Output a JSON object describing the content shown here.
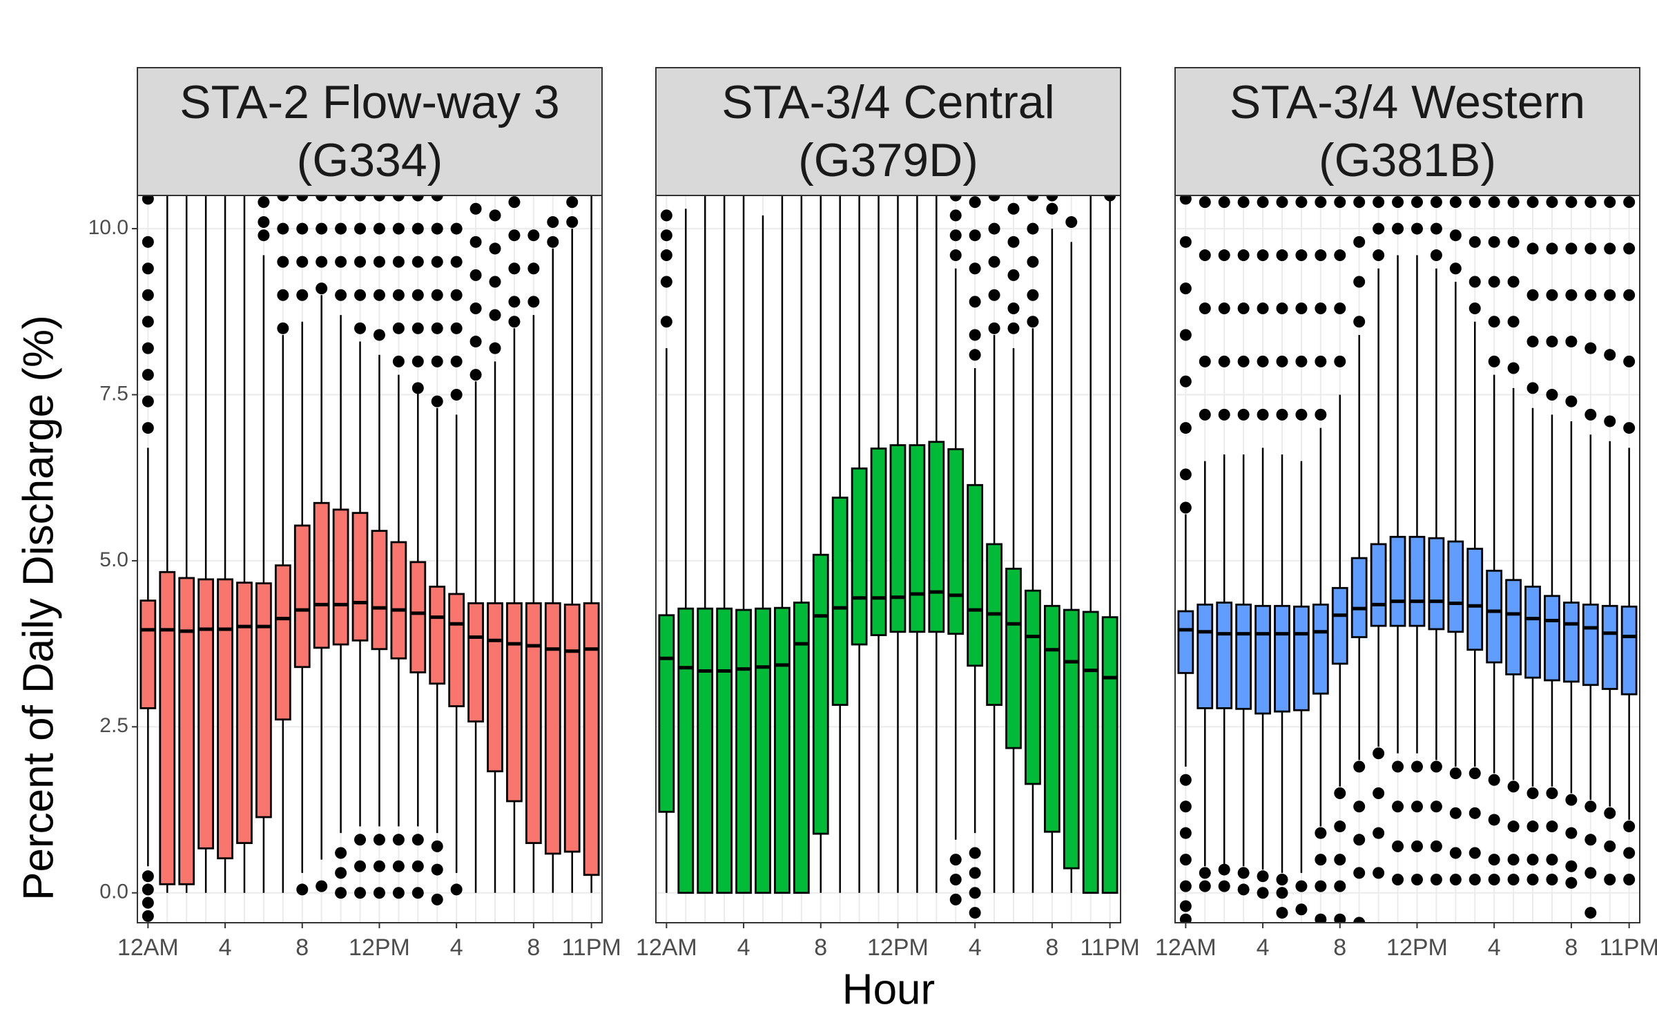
{
  "chart_data": {
    "type": "boxplot",
    "y_label": "Percent of Daily Discharge (%)",
    "x_label": "Hour",
    "categories": [
      "12AM",
      null,
      null,
      null,
      "4",
      null,
      null,
      null,
      "8",
      null,
      null,
      null,
      "12PM",
      null,
      null,
      null,
      "4",
      null,
      null,
      null,
      "8",
      null,
      null,
      "11PM"
    ],
    "ylim": [
      -0.45,
      10.5
    ],
    "yticks": [
      {
        "value": 0,
        "label": "0.0"
      },
      {
        "value": 2.5,
        "label": "2.5"
      },
      {
        "value": 5,
        "label": "5.0"
      },
      {
        "value": 7.5,
        "label": "7.5"
      },
      {
        "value": 10,
        "label": "10.0"
      }
    ],
    "grid": true,
    "facets": [
      {
        "title_lines": [
          "STA-2 Flow-way 3",
          "(G334)"
        ],
        "color": "#F8766D",
        "q1": [
          2.78,
          0.13,
          0.13,
          0.67,
          0.52,
          0.75,
          1.14,
          2.61,
          3.4,
          3.69,
          3.74,
          3.8,
          3.67,
          3.53,
          3.32,
          3.15,
          2.81,
          2.58,
          1.83,
          1.38,
          0.75,
          0.59,
          0.62,
          0.27
        ],
        "median": [
          3.96,
          3.96,
          3.94,
          3.97,
          3.97,
          4.01,
          4.01,
          4.13,
          4.26,
          4.34,
          4.34,
          4.37,
          4.29,
          4.26,
          4.21,
          4.15,
          4.05,
          3.85,
          3.8,
          3.75,
          3.72,
          3.67,
          3.64,
          3.67
        ],
        "q3": [
          4.4,
          4.83,
          4.74,
          4.72,
          4.72,
          4.67,
          4.66,
          4.93,
          5.53,
          5.87,
          5.77,
          5.72,
          5.45,
          5.28,
          4.98,
          4.61,
          4.5,
          4.36,
          4.36,
          4.36,
          4.36,
          4.36,
          4.34,
          4.36
        ],
        "whisker_low": [
          0.4,
          0,
          0,
          0,
          0,
          0,
          0,
          0,
          0.3,
          0.5,
          0.9,
          1.0,
          1.0,
          1.0,
          1.0,
          0.9,
          0.3,
          0,
          0,
          0,
          0,
          0,
          0,
          0
        ],
        "whisker_high": [
          6.7,
          10.5,
          10.5,
          10.5,
          10.5,
          10.5,
          9.6,
          8.4,
          8.6,
          9.0,
          8.7,
          8.3,
          8.1,
          7.8,
          7.6,
          7.3,
          7.2,
          7.7,
          8.0,
          8.5,
          8.7,
          9.7,
          10.0,
          10.5
        ],
        "outliers": [
          [
            10.45,
            9.8,
            9.4,
            9.0,
            8.6,
            8.2,
            7.8,
            7.4,
            7.0,
            0.25,
            0.05,
            -0.15,
            -0.35
          ],
          [],
          [],
          [],
          [],
          [],
          [
            10.4,
            10.1,
            9.9
          ],
          [
            10.5,
            10.0,
            9.5,
            9.0,
            8.5
          ],
          [
            10.5,
            10.0,
            9.5,
            9.0,
            0.05
          ],
          [
            10.5,
            10.0,
            9.5,
            9.1,
            0.1
          ],
          [
            10.5,
            10.0,
            9.5,
            9.0,
            0.6,
            0.3,
            0.0
          ],
          [
            10.5,
            10.0,
            9.5,
            9.0,
            8.5,
            0.8,
            0.4,
            0.0
          ],
          [
            10.5,
            10.0,
            9.5,
            9.0,
            8.4,
            0.8,
            0.4,
            0.0
          ],
          [
            10.5,
            10.0,
            9.5,
            9.0,
            8.5,
            8.0,
            0.8,
            0.4,
            0.0
          ],
          [
            10.5,
            10.0,
            9.5,
            9.0,
            8.5,
            8.0,
            7.6,
            0.8,
            0.4,
            0.0
          ],
          [
            10.5,
            10.0,
            9.5,
            9.0,
            8.5,
            8.0,
            7.4,
            0.7,
            0.35,
            -0.1
          ],
          [
            10.0,
            9.5,
            9.0,
            8.5,
            8.0,
            7.5,
            0.05
          ],
          [
            10.3,
            9.8,
            9.3,
            8.8,
            8.3,
            7.8
          ],
          [
            10.2,
            9.7,
            9.2,
            8.7,
            8.2
          ],
          [
            10.4,
            9.9,
            9.4,
            8.9,
            8.6
          ],
          [
            9.9,
            9.4,
            8.9
          ],
          [
            10.1,
            9.8
          ],
          [
            10.4,
            10.1
          ],
          []
        ]
      },
      {
        "title_lines": [
          "STA-3/4 Central",
          "(G379D)"
        ],
        "color": "#00BA38",
        "q1": [
          1.22,
          0,
          0,
          0,
          0,
          0,
          0,
          0,
          0.89,
          2.83,
          3.74,
          3.88,
          3.93,
          3.93,
          3.93,
          3.9,
          3.42,
          2.83,
          2.18,
          1.64,
          0.92,
          0.37,
          0,
          0
        ],
        "median": [
          3.53,
          3.39,
          3.34,
          3.34,
          3.37,
          3.4,
          3.43,
          3.75,
          4.17,
          4.29,
          4.44,
          4.44,
          4.45,
          4.5,
          4.53,
          4.48,
          4.26,
          4.2,
          4.05,
          3.86,
          3.66,
          3.48,
          3.35,
          3.24
        ],
        "q3": [
          4.18,
          4.28,
          4.28,
          4.28,
          4.26,
          4.28,
          4.29,
          4.37,
          5.09,
          5.95,
          6.39,
          6.69,
          6.74,
          6.74,
          6.79,
          6.68,
          6.14,
          5.25,
          4.88,
          4.55,
          4.32,
          4.26,
          4.23,
          4.15
        ],
        "whisker_low": [
          0,
          0,
          0,
          0,
          0,
          0,
          0,
          0,
          0,
          0,
          0,
          0,
          0,
          0,
          0,
          0.8,
          0.9,
          0,
          0,
          0,
          0,
          0,
          0,
          0
        ],
        "whisker_high": [
          8.2,
          10.3,
          10.5,
          10.5,
          10.5,
          10.2,
          10.5,
          10.5,
          10.5,
          10.5,
          10.5,
          10.5,
          10.5,
          10.5,
          10.5,
          9.4,
          7.9,
          8.4,
          8.2,
          8.5,
          10.0,
          9.8,
          10.5,
          10.5
        ],
        "outliers": [
          [
            10.2,
            9.9,
            9.6,
            9.2,
            8.6
          ],
          [],
          [],
          [],
          [],
          [],
          [],
          [],
          [],
          [],
          [],
          [],
          [],
          [],
          [],
          [
            10.5,
            10.2,
            9.9,
            9.6,
            0.5,
            0.2,
            -0.1
          ],
          [
            10.4,
            9.9,
            9.4,
            8.9,
            8.4,
            8.1,
            0.6,
            0.3,
            0.0,
            -0.3
          ],
          [
            10.5,
            10.0,
            9.5,
            9.0,
            8.5
          ],
          [
            10.3,
            9.8,
            9.3,
            8.8,
            8.5
          ],
          [
            10.5,
            10.0,
            9.5,
            9.0,
            8.6
          ],
          [
            10.5,
            10.3
          ],
          [
            10.1
          ],
          [],
          [
            10.5
          ]
        ]
      },
      {
        "title_lines": [
          "STA-3/4 Western",
          "(G381B)"
        ],
        "color": "#619CFF",
        "q1": [
          3.31,
          2.78,
          2.78,
          2.77,
          2.7,
          2.73,
          2.75,
          3.0,
          3.45,
          3.85,
          4.02,
          4.02,
          4.02,
          3.97,
          3.93,
          3.66,
          3.47,
          3.29,
          3.24,
          3.2,
          3.18,
          3.13,
          3.07,
          2.99
        ],
        "median": [
          3.96,
          3.93,
          3.9,
          3.9,
          3.9,
          3.9,
          3.9,
          3.93,
          4.18,
          4.28,
          4.34,
          4.39,
          4.39,
          4.39,
          4.36,
          4.32,
          4.24,
          4.2,
          4.13,
          4.1,
          4.05,
          3.99,
          3.91,
          3.86
        ],
        "q3": [
          4.24,
          4.34,
          4.37,
          4.34,
          4.32,
          4.32,
          4.31,
          4.34,
          4.59,
          5.04,
          5.25,
          5.36,
          5.36,
          5.34,
          5.29,
          5.18,
          4.85,
          4.71,
          4.61,
          4.47,
          4.37,
          4.34,
          4.32,
          4.31
        ],
        "whisker_low": [
          1.9,
          0.4,
          0.4,
          0.4,
          0.35,
          0.3,
          0.3,
          1.0,
          1.6,
          2.0,
          2.2,
          2.1,
          2.1,
          2.0,
          1.9,
          1.9,
          1.8,
          1.7,
          1.6,
          1.6,
          1.5,
          1.4,
          1.3,
          1.1
        ],
        "whisker_high": [
          5.7,
          6.5,
          6.6,
          6.6,
          6.7,
          6.6,
          6.5,
          7.0,
          7.5,
          8.4,
          9.4,
          9.6,
          9.6,
          9.4,
          9.2,
          8.6,
          7.8,
          7.6,
          7.3,
          7.2,
          7.1,
          6.9,
          6.8,
          6.7
        ],
        "outliers": [
          [
            10.45,
            9.8,
            9.1,
            8.4,
            7.7,
            7.0,
            6.3,
            5.8,
            1.7,
            1.3,
            0.9,
            0.5,
            0.1,
            -0.2,
            -0.4
          ],
          [
            10.4,
            9.6,
            8.8,
            8.0,
            7.2,
            0.3,
            0.1
          ],
          [
            10.4,
            9.6,
            8.8,
            8.0,
            7.2,
            0.35,
            0.1
          ],
          [
            10.4,
            9.6,
            8.8,
            8.0,
            7.2,
            0.3,
            0.05
          ],
          [
            10.4,
            9.6,
            8.8,
            8.0,
            7.2,
            0.25,
            0.0
          ],
          [
            10.4,
            9.6,
            8.8,
            8.0,
            7.2,
            0.2,
            0.0,
            -0.3
          ],
          [
            10.4,
            9.6,
            8.8,
            8.0,
            7.2,
            0.1,
            -0.25
          ],
          [
            10.4,
            9.6,
            8.8,
            8.0,
            7.2,
            0.9,
            0.5,
            0.1,
            -0.4
          ],
          [
            10.4,
            9.6,
            8.8,
            8.0,
            1.5,
            1.0,
            0.5,
            0.1,
            -0.4
          ],
          [
            10.4,
            9.8,
            9.2,
            8.6,
            1.9,
            1.3,
            0.8,
            0.3,
            -0.45
          ],
          [
            10.4,
            10.0,
            9.6,
            2.1,
            1.5,
            0.9,
            0.3
          ],
          [
            10.4,
            10.0,
            1.9,
            1.3,
            0.7,
            0.2
          ],
          [
            10.4,
            10.0,
            1.9,
            1.3,
            0.7,
            0.2
          ],
          [
            10.4,
            10.0,
            9.6,
            1.9,
            1.3,
            0.7,
            0.2
          ],
          [
            10.4,
            9.9,
            9.4,
            1.8,
            1.2,
            0.6,
            0.2
          ],
          [
            10.4,
            9.8,
            9.2,
            8.8,
            1.8,
            1.2,
            0.6,
            0.2
          ],
          [
            10.4,
            9.8,
            9.2,
            8.6,
            8.0,
            1.7,
            1.1,
            0.5,
            0.2
          ],
          [
            10.4,
            9.8,
            9.2,
            8.6,
            7.9,
            1.6,
            1.0,
            0.5,
            0.2
          ],
          [
            10.4,
            9.7,
            9.0,
            8.3,
            7.6,
            1.5,
            1.0,
            0.5,
            0.2
          ],
          [
            10.4,
            9.7,
            9.0,
            8.3,
            7.5,
            1.5,
            1.0,
            0.5,
            0.2
          ],
          [
            10.4,
            9.7,
            9.0,
            8.3,
            7.4,
            1.4,
            0.9,
            0.4,
            0.15
          ],
          [
            10.4,
            9.7,
            9.0,
            8.2,
            7.2,
            1.3,
            0.8,
            0.3,
            -0.3
          ],
          [
            10.4,
            9.7,
            9.0,
            8.1,
            7.1,
            1.2,
            0.7,
            0.2
          ],
          [
            10.4,
            9.7,
            9.0,
            8.0,
            7.0,
            1.0,
            0.6,
            0.2
          ]
        ]
      }
    ]
  }
}
